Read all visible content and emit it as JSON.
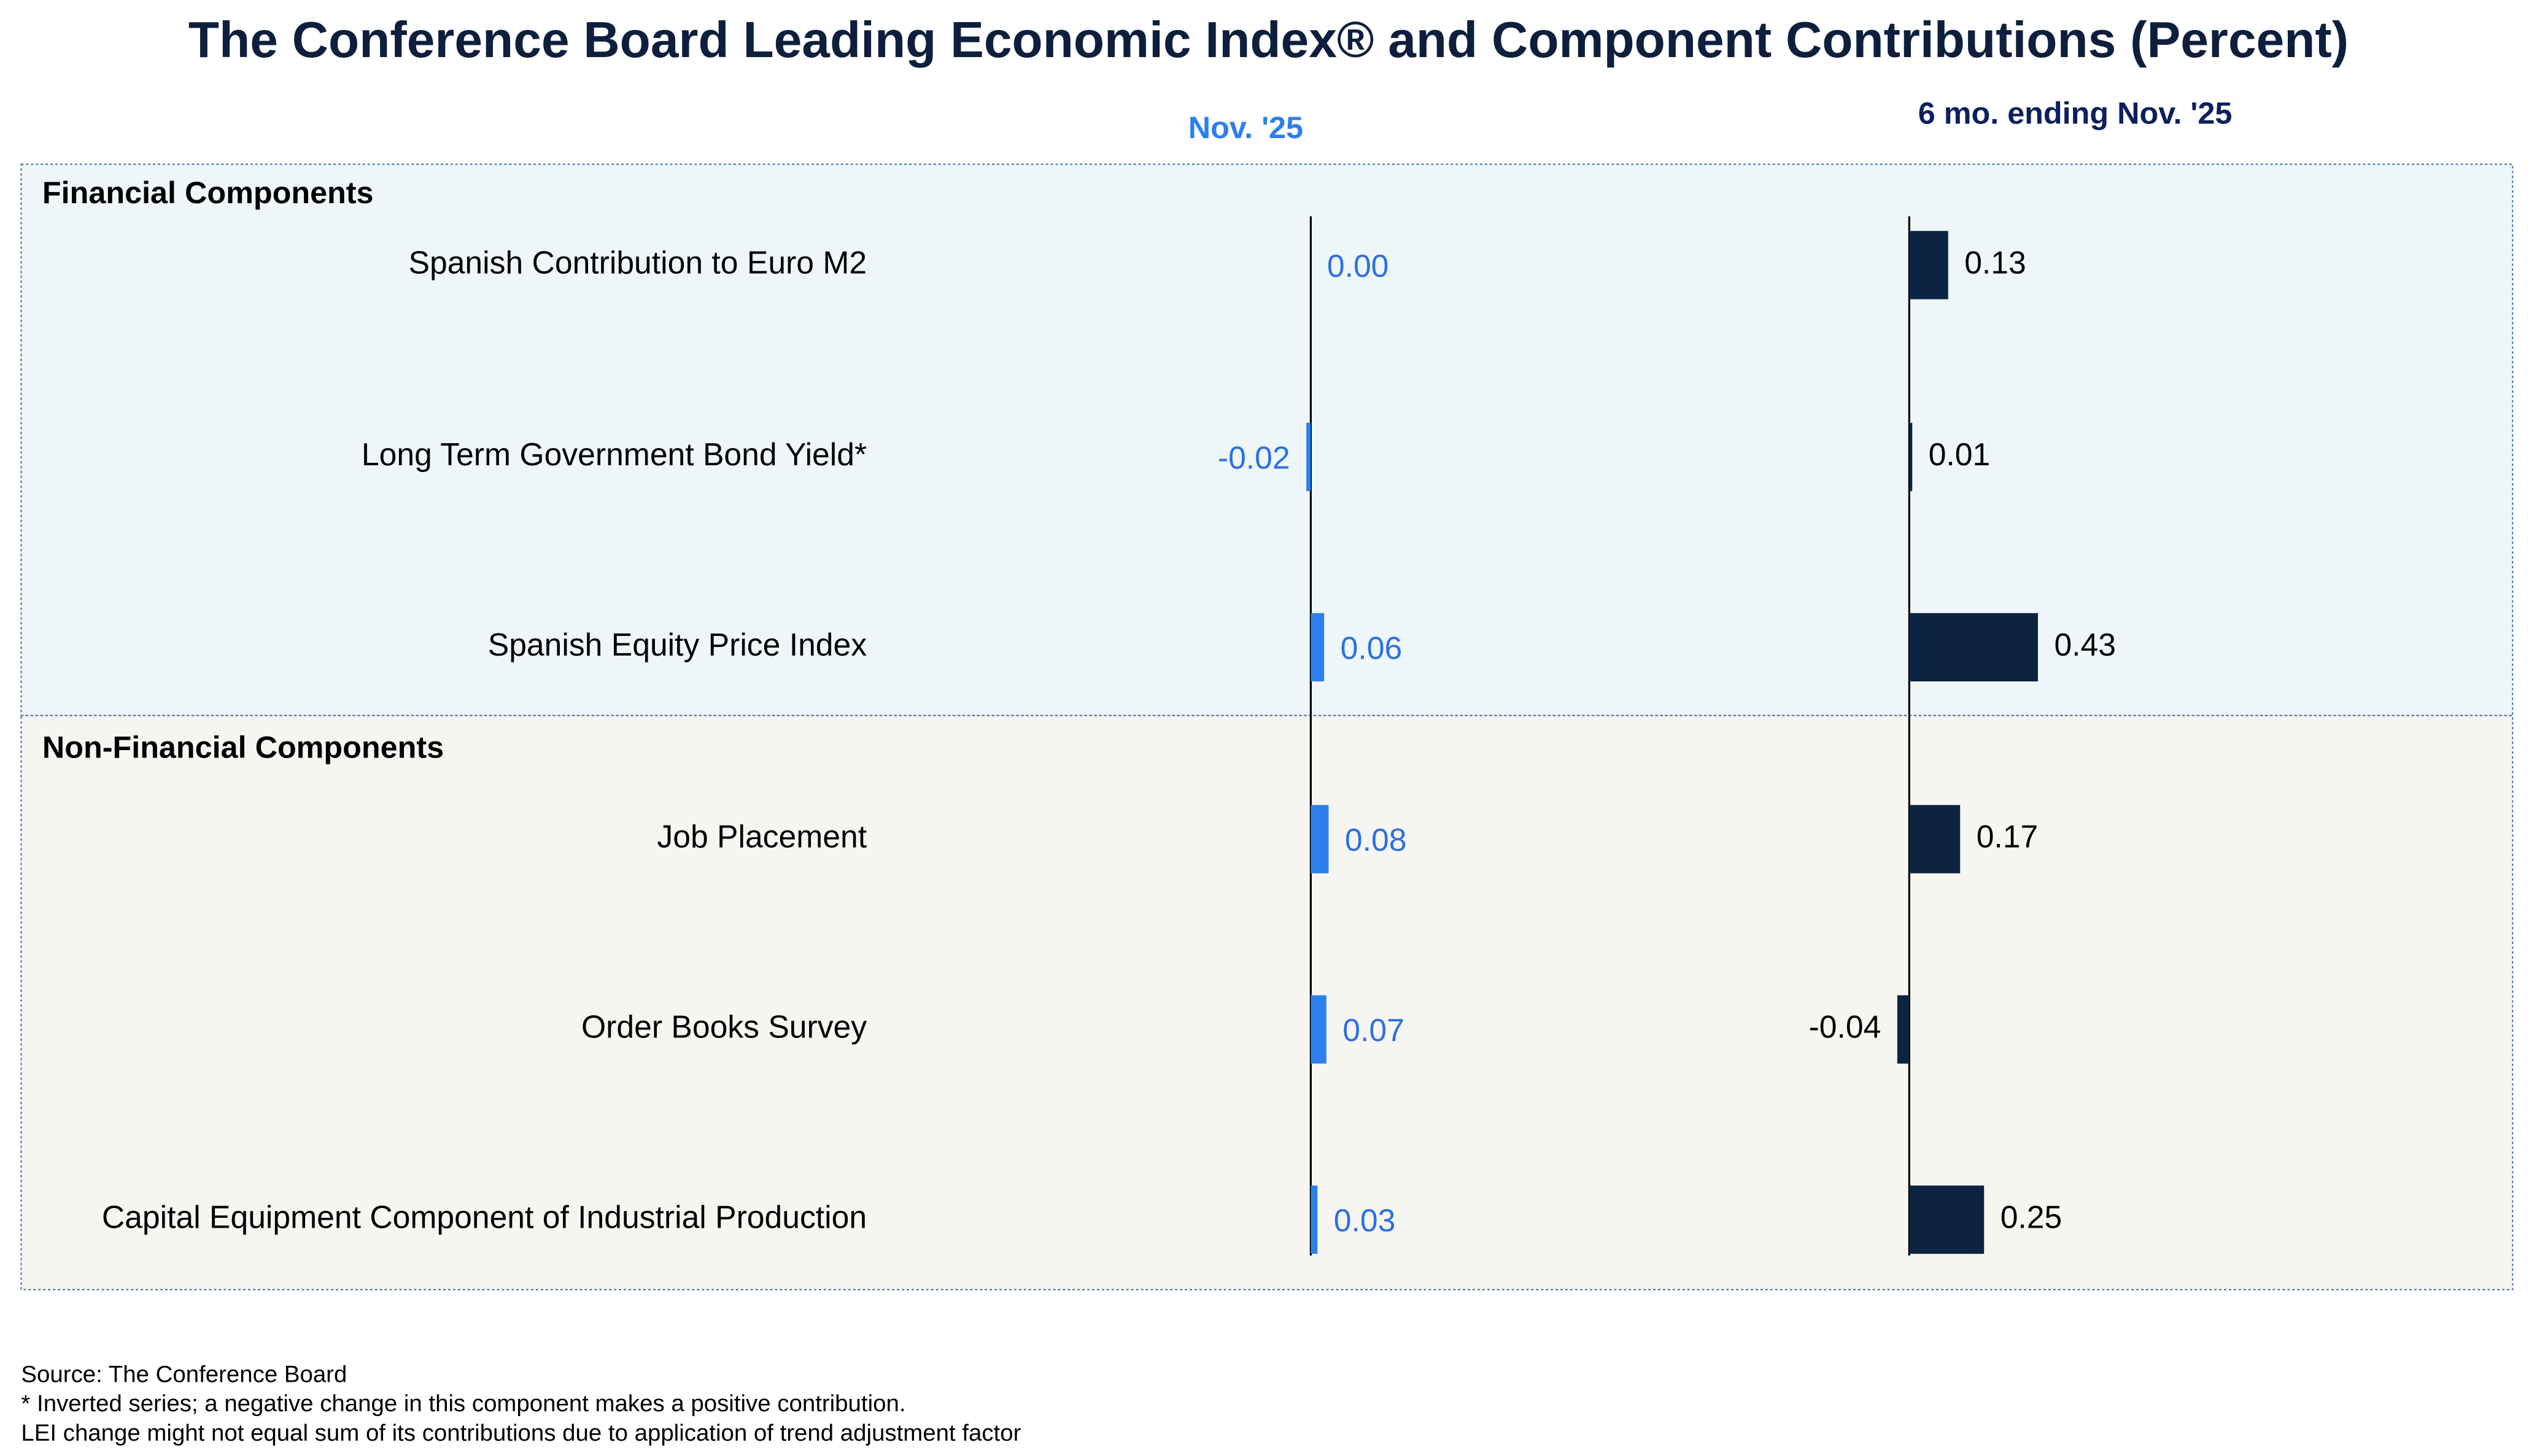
{
  "title": "The Conference Board Leading Economic Index® and Component Contributions (Percent)",
  "groups": [
    "Financial Components",
    "Non-Financial Components"
  ],
  "chart_data": [
    {
      "type": "bar",
      "orientation": "horizontal",
      "title": "Nov. '25",
      "color": "#2b80ee",
      "categories": [
        "Spanish Contribution to Euro M2",
        "Long Term Government Bond Yield*",
        "Spanish Equity Price Index",
        "Job Placement",
        "Order Books Survey",
        "Capital Equipment Component of Industrial Production"
      ],
      "values": [
        0.0,
        -0.02,
        0.06,
        0.08,
        0.07,
        0.03
      ],
      "value_labels": [
        "0.00",
        "-0.02",
        "0.06",
        "0.08",
        "0.07",
        "0.03"
      ]
    },
    {
      "type": "bar",
      "orientation": "horizontal",
      "title": "6 mo. ending Nov. '25",
      "color": "#0c2342",
      "values": [
        0.13,
        0.01,
        0.43,
        0.17,
        -0.04,
        0.25
      ],
      "value_labels": [
        "0.13",
        "0.01",
        "0.43",
        "0.17",
        "-0.04",
        "0.25"
      ]
    }
  ],
  "notes": [
    "Source: The Conference Board",
    "* Inverted series; a negative change in this component makes a positive contribution.",
    "LEI change might not equal sum of its contributions due to application of trend adjustment factor"
  ]
}
